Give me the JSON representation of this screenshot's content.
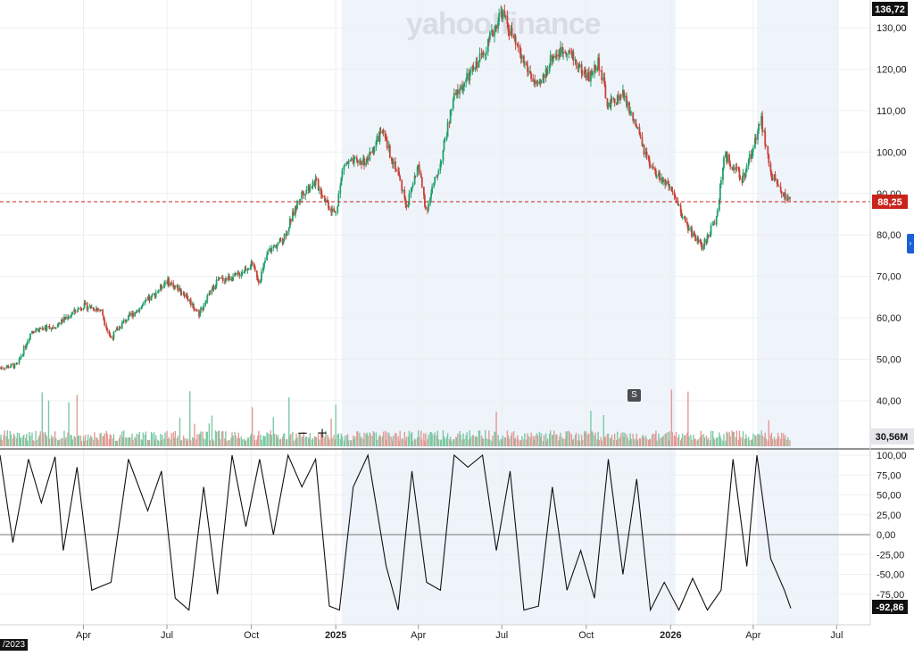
{
  "watermark": "yahoo!finance",
  "badges": {
    "last_price": "136,72",
    "current_price": "88,25",
    "volume": "30,56M",
    "oscillator": "-92,86"
  },
  "date_chip": "/2023",
  "controls": {
    "zoom_out": "−",
    "zoom_in": "+",
    "event_marker": "S",
    "side_tab": "›"
  },
  "colors": {
    "up": "#22a06b",
    "down": "#c8443a",
    "volume_up": "#7cc9a4",
    "volume_down": "#e39a94",
    "current_price": "#c8241b",
    "highlight_band": "#eef4fa"
  },
  "chart_data": {
    "type": "candlestick",
    "price_axis": {
      "ylim": [
        40,
        137
      ],
      "ticks": [
        "130,00",
        "120,00",
        "110,00",
        "100,00",
        "90,00",
        "80,00",
        "70,00",
        "60,00",
        "50,00",
        "40,00"
      ],
      "tick_values": [
        130,
        120,
        110,
        100,
        90,
        80,
        70,
        60,
        50,
        40
      ]
    },
    "oscillator_axis": {
      "ylim": [
        -100,
        100
      ],
      "ticks": [
        "100,00",
        "75,00",
        "50,00",
        "25,00",
        "0,00",
        "-25,00",
        "-50,00",
        "-75,00"
      ],
      "tick_values": [
        100,
        75,
        50,
        25,
        0,
        -25,
        -50,
        -75
      ]
    },
    "x_ticks": [
      "Apr",
      "Jul",
      "Oct",
      "2025",
      "Apr",
      "Jul",
      "Oct",
      "2026",
      "Apr",
      "Jul"
    ],
    "price_path": [
      [
        "2024-01-01",
        48
      ],
      [
        "2024-01-20",
        48.5
      ],
      [
        "2024-02-05",
        57
      ],
      [
        "2024-03-01",
        58
      ],
      [
        "2024-04-01",
        63
      ],
      [
        "2024-04-20",
        62
      ],
      [
        "2024-05-01",
        55
      ],
      [
        "2024-05-15",
        59
      ],
      [
        "2024-06-15",
        65
      ],
      [
        "2024-07-01",
        69
      ],
      [
        "2024-07-20",
        66
      ],
      [
        "2024-08-05",
        61
      ],
      [
        "2024-08-25",
        69
      ],
      [
        "2024-09-15",
        70
      ],
      [
        "2024-10-01",
        73
      ],
      [
        "2024-10-10",
        69
      ],
      [
        "2024-10-20",
        76
      ],
      [
        "2024-11-05",
        79
      ],
      [
        "2024-11-25",
        90
      ],
      [
        "2024-12-10",
        93
      ],
      [
        "2024-12-25",
        87
      ],
      [
        "2025-01-01",
        85
      ],
      [
        "2025-01-10",
        97
      ],
      [
        "2025-02-05",
        98
      ],
      [
        "2025-02-20",
        105
      ],
      [
        "2025-03-10",
        95
      ],
      [
        "2025-03-20",
        87
      ],
      [
        "2025-04-01",
        97
      ],
      [
        "2025-04-10",
        86
      ],
      [
        "2025-04-25",
        97
      ],
      [
        "2025-05-10",
        113
      ],
      [
        "2025-06-01",
        120
      ],
      [
        "2025-06-20",
        128
      ],
      [
        "2025-07-01",
        134
      ],
      [
        "2025-07-20",
        124
      ],
      [
        "2025-08-10",
        115
      ],
      [
        "2025-08-25",
        123
      ],
      [
        "2025-09-10",
        125
      ],
      [
        "2025-09-25",
        120
      ],
      [
        "2025-10-05",
        118
      ],
      [
        "2025-10-15",
        122
      ],
      [
        "2025-10-25",
        111
      ],
      [
        "2025-11-10",
        114
      ],
      [
        "2025-11-25",
        106
      ],
      [
        "2025-12-10",
        96
      ],
      [
        "2025-12-25",
        93
      ],
      [
        "2026-01-05",
        89
      ],
      [
        "2026-01-20",
        82
      ],
      [
        "2026-02-05",
        77
      ],
      [
        "2026-02-20",
        84
      ],
      [
        "2026-03-01",
        99
      ],
      [
        "2026-03-10",
        97
      ],
      [
        "2026-03-20",
        93
      ],
      [
        "2026-04-01",
        101
      ],
      [
        "2026-04-10",
        108
      ],
      [
        "2026-04-20",
        95
      ],
      [
        "2026-05-01",
        91
      ],
      [
        "2026-05-10",
        88.25
      ]
    ],
    "oscillator_path": [
      [
        "2024-01-01",
        100
      ],
      [
        "2024-01-15",
        -10
      ],
      [
        "2024-02-01",
        95
      ],
      [
        "2024-02-15",
        40
      ],
      [
        "2024-03-01",
        98
      ],
      [
        "2024-03-10",
        -20
      ],
      [
        "2024-03-25",
        85
      ],
      [
        "2024-04-10",
        -70
      ],
      [
        "2024-05-01",
        -60
      ],
      [
        "2024-05-20",
        95
      ],
      [
        "2024-06-10",
        30
      ],
      [
        "2024-06-25",
        80
      ],
      [
        "2024-07-10",
        -80
      ],
      [
        "2024-07-25",
        -95
      ],
      [
        "2024-08-10",
        60
      ],
      [
        "2024-08-25",
        -75
      ],
      [
        "2024-09-10",
        100
      ],
      [
        "2024-09-25",
        10
      ],
      [
        "2024-10-10",
        95
      ],
      [
        "2024-10-25",
        0
      ],
      [
        "2024-11-10",
        100
      ],
      [
        "2024-11-25",
        60
      ],
      [
        "2024-12-10",
        95
      ],
      [
        "2024-12-25",
        -90
      ],
      [
        "2025-01-05",
        -95
      ],
      [
        "2025-01-20",
        60
      ],
      [
        "2025-02-05",
        100
      ],
      [
        "2025-02-25",
        -40
      ],
      [
        "2025-03-10",
        -95
      ],
      [
        "2025-03-25",
        80
      ],
      [
        "2025-04-10",
        -60
      ],
      [
        "2025-04-25",
        -70
      ],
      [
        "2025-05-10",
        100
      ],
      [
        "2025-05-25",
        85
      ],
      [
        "2025-06-10",
        100
      ],
      [
        "2025-06-25",
        -20
      ],
      [
        "2025-07-10",
        80
      ],
      [
        "2025-07-25",
        -95
      ],
      [
        "2025-08-10",
        -90
      ],
      [
        "2025-08-25",
        60
      ],
      [
        "2025-09-10",
        -70
      ],
      [
        "2025-09-25",
        -20
      ],
      [
        "2025-10-10",
        -80
      ],
      [
        "2025-10-25",
        95
      ],
      [
        "2025-11-10",
        -50
      ],
      [
        "2025-11-25",
        70
      ],
      [
        "2025-12-10",
        -95
      ],
      [
        "2025-12-25",
        -60
      ],
      [
        "2026-01-10",
        -95
      ],
      [
        "2026-01-25",
        -55
      ],
      [
        "2026-02-10",
        -95
      ],
      [
        "2026-02-25",
        -70
      ],
      [
        "2026-03-10",
        95
      ],
      [
        "2026-03-25",
        -40
      ],
      [
        "2026-04-05",
        100
      ],
      [
        "2026-04-20",
        -30
      ],
      [
        "2026-05-05",
        -70
      ],
      [
        "2026-05-12",
        -92.86
      ]
    ]
  }
}
